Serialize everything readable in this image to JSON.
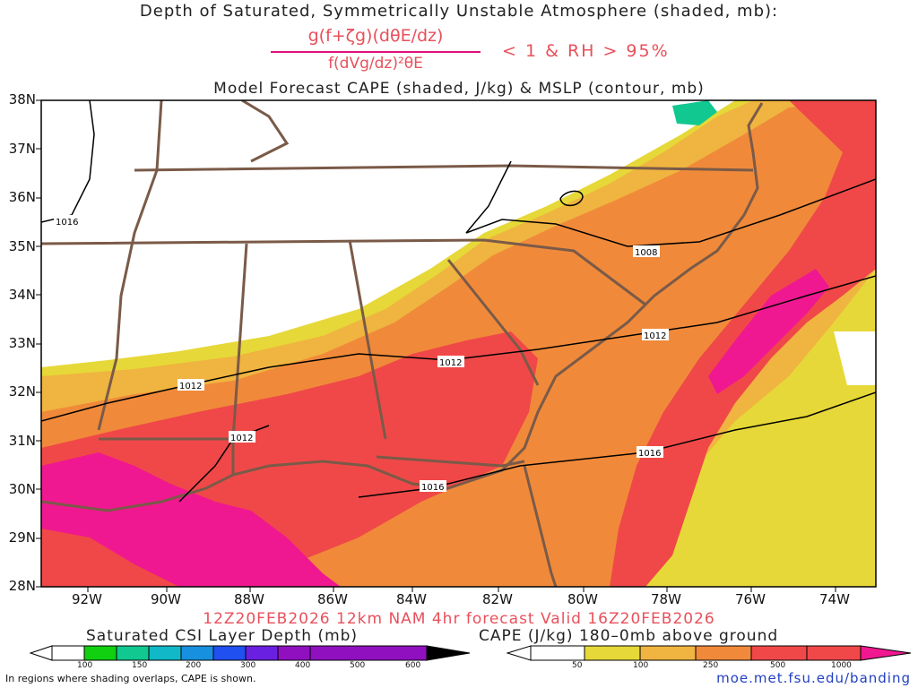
{
  "title_line1": "Depth of Saturated, Symmetrically Unstable Atmosphere (shaded, mb):",
  "formula_numerator": "g(f+ζg)(dθE/dz)",
  "formula_denominator": "f(dVg/dz)²θE",
  "formula_condition": "< 1 & RH > 95%",
  "title_line3": "Model Forecast CAPE (shaded, J/kg) & MSLP (contour, mb)",
  "latitude_labels": [
    "38N",
    "37N",
    "36N",
    "35N",
    "34N",
    "33N",
    "32N",
    "31N",
    "30N",
    "29N",
    "28N"
  ],
  "longitude_labels": [
    "92W",
    "90W",
    "88W",
    "86W",
    "84W",
    "82W",
    "80W",
    "78W",
    "76W",
    "74W"
  ],
  "mslp_contour_labels": [
    "1016",
    "1008",
    "1012",
    "1012",
    "1012",
    "1012",
    "1016",
    "1016"
  ],
  "valid_line": "12Z20FEB2026 12km NAM 4hr forecast Valid 16Z20FEB2026",
  "legend_csi": {
    "title": "Saturated CSI Layer Depth (mb)",
    "ticks": [
      "100",
      "150",
      "200",
      "300",
      "400",
      "500",
      "600"
    ],
    "colors": [
      "#ffffff",
      "#10d010",
      "#10c890",
      "#10b8c8",
      "#1890e0",
      "#2050f0",
      "#6a20e0",
      "#9010c0",
      "#000000"
    ]
  },
  "legend_cape": {
    "title": "CAPE (J/kg) 180–0mb above ground",
    "ticks": [
      "50",
      "100",
      "250",
      "500",
      "1000"
    ],
    "colors": [
      "#ffffff",
      "#e6d838",
      "#f0b440",
      "#f08a3a",
      "#f04848",
      "#f01890"
    ]
  },
  "footnote": "In regions where shading overlaps, CAPE is shown.",
  "credit": "moe.met.fsu.edu/banding",
  "colors": {
    "cape_50": "#e6d838",
    "cape_100": "#f0b440",
    "cape_250": "#f08a3a",
    "cape_500": "#f04848",
    "cape_1000": "#f01890",
    "boundaries": "#7a5a48",
    "contours": "#000000",
    "title_accent": "#e8505b",
    "credit": "#2240c0"
  }
}
